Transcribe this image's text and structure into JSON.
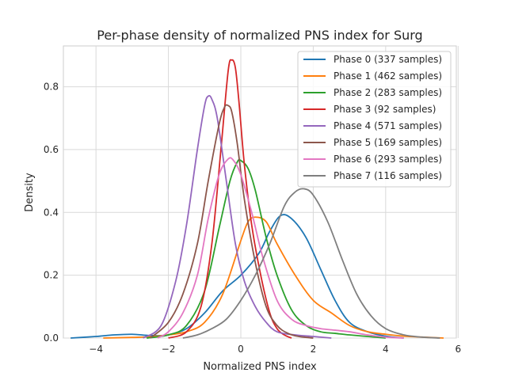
{
  "chart_data": {
    "type": "line",
    "title": "Per-phase density of normalized PNS index for Surg",
    "xlabel": "Normalized PNS index",
    "ylabel": "Density",
    "xlim": [
      -4.9,
      5.95
    ],
    "ylim": [
      0,
      0.93
    ],
    "xticks": [
      -4,
      -2,
      0,
      2,
      4,
      6
    ],
    "yticks": [
      0.0,
      0.2,
      0.4,
      0.6,
      0.8
    ],
    "xtick_labels": [
      "−4",
      "−2",
      "0",
      "2",
      "4",
      "6"
    ],
    "ytick_labels": [
      "0.0",
      "0.2",
      "0.4",
      "0.6",
      "0.8"
    ],
    "grid": true,
    "legend_position": "top-right",
    "series": [
      {
        "name": "Phase 0 (337 samples)",
        "color": "#1f77b4",
        "x": [
          -4.7,
          -4.0,
          -3.5,
          -3.0,
          -2.5,
          -2.0,
          -1.5,
          -1.0,
          -0.5,
          0.0,
          0.5,
          0.8,
          1.1,
          1.4,
          1.8,
          2.2,
          2.6,
          3.0,
          3.5,
          4.0,
          4.5
        ],
        "y": [
          0.0,
          0.005,
          0.01,
          0.012,
          0.008,
          0.01,
          0.03,
          0.08,
          0.15,
          0.2,
          0.27,
          0.34,
          0.39,
          0.38,
          0.32,
          0.22,
          0.12,
          0.05,
          0.02,
          0.006,
          0.0
        ]
      },
      {
        "name": "Phase 1 (462 samples)",
        "color": "#ff7f0e",
        "x": [
          -3.8,
          -3.0,
          -2.5,
          -2.0,
          -1.5,
          -1.0,
          -0.5,
          0.0,
          0.2,
          0.4,
          0.7,
          1.0,
          1.5,
          2.0,
          2.5,
          3.0,
          3.5,
          4.0,
          4.5,
          5.0,
          5.6
        ],
        "y": [
          0.0,
          0.002,
          0.004,
          0.01,
          0.02,
          0.05,
          0.14,
          0.31,
          0.37,
          0.385,
          0.37,
          0.3,
          0.2,
          0.12,
          0.08,
          0.04,
          0.02,
          0.012,
          0.006,
          0.003,
          0.0
        ]
      },
      {
        "name": "Phase 2 (283 samples)",
        "color": "#2ca02c",
        "x": [
          -2.6,
          -2.0,
          -1.5,
          -1.0,
          -0.6,
          -0.3,
          -0.1,
          0.0,
          0.2,
          0.4,
          0.7,
          1.0,
          1.4,
          1.8,
          2.2,
          2.6,
          3.0,
          3.5,
          4.0
        ],
        "y": [
          0.0,
          0.01,
          0.04,
          0.15,
          0.35,
          0.5,
          0.56,
          0.565,
          0.54,
          0.47,
          0.32,
          0.2,
          0.09,
          0.04,
          0.02,
          0.015,
          0.01,
          0.005,
          0.0
        ]
      },
      {
        "name": "Phase 3 (92 samples)",
        "color": "#d62728",
        "x": [
          -2.0,
          -1.5,
          -1.1,
          -0.8,
          -0.55,
          -0.35,
          -0.25,
          -0.15,
          -0.05,
          0.1,
          0.3,
          0.55,
          0.8,
          1.0,
          1.2,
          1.4
        ],
        "y": [
          0.0,
          0.02,
          0.1,
          0.3,
          0.6,
          0.85,
          0.885,
          0.86,
          0.75,
          0.55,
          0.36,
          0.2,
          0.08,
          0.03,
          0.01,
          0.0
        ]
      },
      {
        "name": "Phase 4 (571 samples)",
        "color": "#9467bd",
        "x": [
          -2.7,
          -2.2,
          -1.8,
          -1.5,
          -1.2,
          -1.0,
          -0.9,
          -0.8,
          -0.65,
          -0.4,
          -0.15,
          0.1,
          0.4,
          0.7,
          1.0,
          1.5,
          2.0,
          2.5
        ],
        "y": [
          0.0,
          0.04,
          0.18,
          0.36,
          0.6,
          0.74,
          0.77,
          0.76,
          0.7,
          0.5,
          0.3,
          0.18,
          0.1,
          0.05,
          0.02,
          0.01,
          0.005,
          0.0
        ]
      },
      {
        "name": "Phase 5 (169 samples)",
        "color": "#8c564b",
        "x": [
          -2.5,
          -2.0,
          -1.6,
          -1.2,
          -0.9,
          -0.6,
          -0.45,
          -0.35,
          -0.25,
          -0.1,
          0.1,
          0.4,
          0.7,
          1.0,
          1.3,
          1.6,
          2.0
        ],
        "y": [
          0.0,
          0.05,
          0.14,
          0.3,
          0.5,
          0.68,
          0.735,
          0.74,
          0.72,
          0.62,
          0.44,
          0.24,
          0.1,
          0.04,
          0.015,
          0.005,
          0.0
        ]
      },
      {
        "name": "Phase 6 (293 samples)",
        "color": "#e377c2",
        "x": [
          -2.3,
          -2.0,
          -1.6,
          -1.2,
          -0.9,
          -0.6,
          -0.35,
          -0.2,
          0.0,
          0.3,
          0.6,
          1.0,
          1.4,
          1.8,
          2.2,
          2.6,
          3.0,
          3.5,
          4.0,
          4.5
        ],
        "y": [
          0.0,
          0.02,
          0.08,
          0.2,
          0.38,
          0.52,
          0.57,
          0.565,
          0.52,
          0.4,
          0.26,
          0.12,
          0.06,
          0.04,
          0.03,
          0.025,
          0.02,
          0.01,
          0.003,
          0.0
        ]
      },
      {
        "name": "Phase 7 (116 samples)",
        "color": "#7f7f7f",
        "x": [
          -1.6,
          -1.2,
          -0.8,
          -0.4,
          0.0,
          0.4,
          0.8,
          1.2,
          1.5,
          1.75,
          2.0,
          2.4,
          2.8,
          3.2,
          3.6,
          4.0,
          4.5,
          5.0,
          5.5
        ],
        "y": [
          0.0,
          0.01,
          0.03,
          0.06,
          0.12,
          0.2,
          0.3,
          0.42,
          0.465,
          0.475,
          0.455,
          0.37,
          0.25,
          0.14,
          0.07,
          0.03,
          0.01,
          0.003,
          0.0
        ]
      }
    ]
  }
}
